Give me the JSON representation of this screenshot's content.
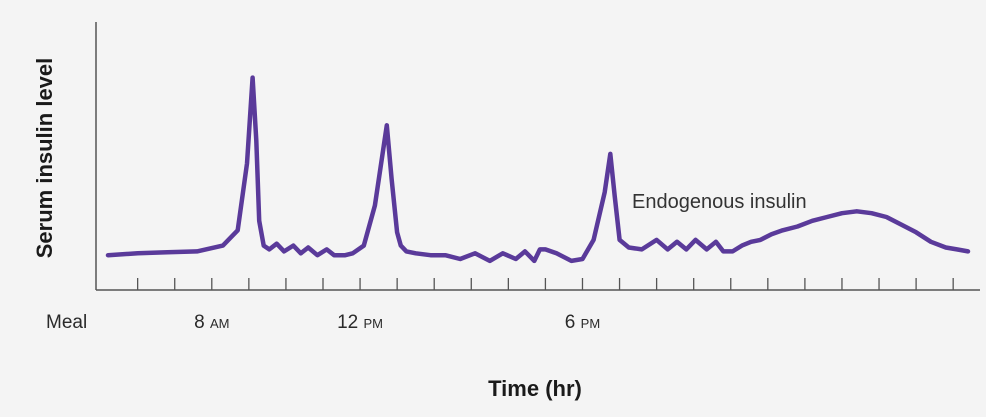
{
  "chart_data": {
    "type": "line",
    "title": "",
    "xlabel": "Time (hr)",
    "ylabel": "Serum insulin level",
    "grid": false,
    "legend": "none",
    "line_color": "#5a3a9a",
    "axis_color": "#555555",
    "x_ticks": {
      "meal": {
        "text": "Meal"
      },
      "labels": [
        {
          "hour": 8,
          "num": "8",
          "ampm": "AM"
        },
        {
          "hour": 12,
          "num": "12",
          "ampm": "PM"
        },
        {
          "hour": 18,
          "num": "6",
          "ampm": "PM"
        }
      ],
      "minor_every_hr": 1
    },
    "xlim": [
      5.2,
      28.4
    ],
    "ylim": [
      0,
      100
    ],
    "annotations": [
      {
        "text": "Endogenous insulin"
      }
    ],
    "series": [
      {
        "x": [
          5.2,
          6.0,
          6.8,
          7.6,
          8.3,
          8.7,
          8.95,
          9.1,
          9.2,
          9.28,
          9.4,
          9.55,
          9.75,
          9.95,
          10.2,
          10.4,
          10.6,
          10.85,
          11.1,
          11.3,
          11.6,
          11.8,
          12.1,
          12.4,
          12.72,
          12.85,
          13.0,
          13.1,
          13.25,
          13.5,
          13.9,
          14.3,
          14.7,
          15.1,
          15.5,
          15.85,
          16.2,
          16.45,
          16.7,
          16.85,
          17.0,
          17.3,
          17.7,
          18.0,
          18.3,
          18.6,
          18.75,
          18.87,
          19.0,
          19.25,
          19.6,
          20.0,
          20.3,
          20.55,
          20.8,
          21.05,
          21.35,
          21.6,
          21.8,
          22.05,
          22.3,
          22.55,
          22.8,
          23.1,
          23.4,
          23.8,
          24.2,
          24.6,
          25.0,
          25.4,
          25.8,
          26.2,
          26.6,
          27.0,
          27.4,
          27.8,
          28.1,
          28.4
        ],
        "y": [
          2,
          3,
          3.5,
          4,
          7,
          15,
          50,
          95,
          62,
          20,
          7,
          5,
          8,
          4,
          7,
          3,
          6,
          2,
          5,
          2,
          2,
          3,
          7,
          28,
          70,
          42,
          14,
          7,
          4,
          3,
          2,
          2,
          0,
          3,
          -1,
          3,
          0,
          4,
          -1,
          5,
          5,
          3,
          -1,
          0,
          10,
          35,
          55,
          33,
          10,
          6,
          5,
          10,
          5,
          9,
          5,
          10,
          5,
          9,
          4,
          4,
          7,
          9,
          10,
          13,
          15,
          17,
          20,
          22,
          24,
          25,
          24,
          22,
          18,
          14,
          9,
          6,
          5,
          4
        ]
      }
    ]
  },
  "legend_text": "Endogenous insulin"
}
